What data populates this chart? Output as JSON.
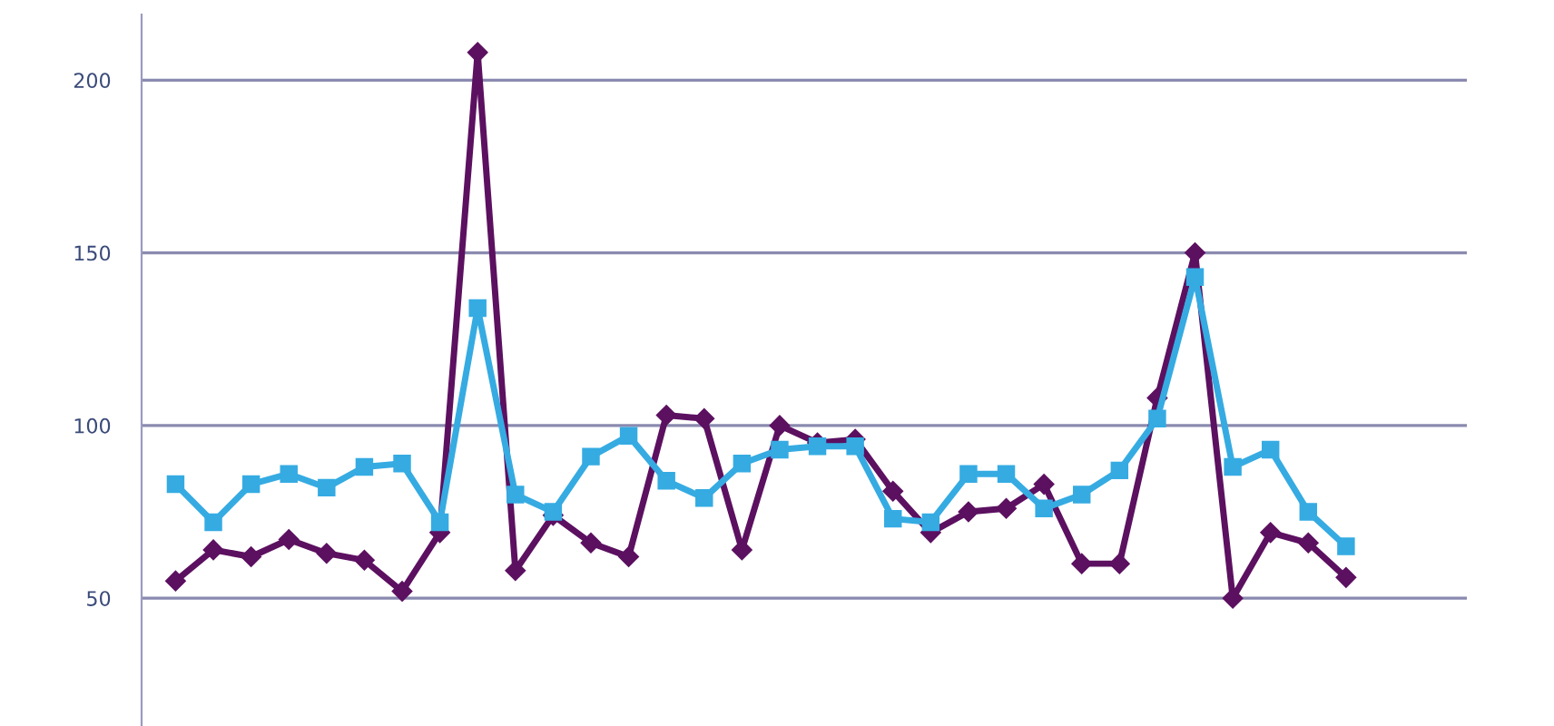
{
  "chart_data": {
    "type": "line",
    "categories": [
      null,
      null,
      null,
      null,
      null,
      null,
      null,
      null,
      null,
      null,
      null,
      null,
      null,
      null,
      null,
      null,
      null,
      null,
      null,
      null,
      null,
      null,
      null,
      null,
      null,
      null,
      null,
      null,
      null,
      null,
      null,
      null
    ],
    "series": [
      {
        "color": "#5c1060",
        "marker": "diamond",
        "values": [
          55,
          64,
          62,
          67,
          63,
          61,
          52,
          69,
          208,
          58,
          74,
          66,
          62,
          103,
          102,
          64,
          100,
          95,
          96,
          81,
          69,
          75,
          76,
          83,
          60,
          60,
          108,
          150,
          50,
          69,
          66,
          56
        ]
      },
      {
        "color": "#35abe2",
        "marker": "square",
        "values": [
          83,
          72,
          83,
          86,
          82,
          88,
          89,
          72,
          134,
          80,
          75,
          91,
          97,
          84,
          79,
          89,
          93,
          94,
          94,
          73,
          72,
          86,
          86,
          76,
          80,
          87,
          102,
          143,
          88,
          93,
          75,
          65
        ]
      }
    ],
    "ylim": [
      13,
      219
    ],
    "yticks": [
      50,
      100,
      150,
      200
    ],
    "grid": "y",
    "legend": false,
    "line_style": "solid"
  }
}
